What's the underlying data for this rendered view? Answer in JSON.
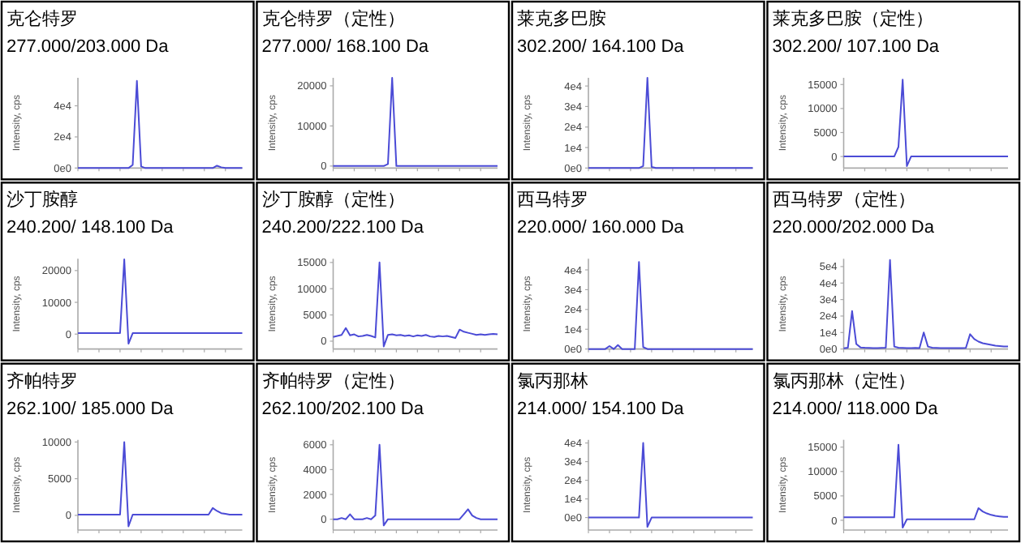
{
  "chart_data": [
    {
      "type": "line",
      "title": "克仑特罗",
      "subtitle": "277.000/203.000 Da",
      "ylabel": "Intensity, cps",
      "tick_labels": "y",
      "categories": [
        null,
        null,
        null,
        null,
        null,
        null,
        null,
        null,
        null,
        null,
        null,
        null,
        null,
        null,
        null,
        null,
        null,
        null,
        null,
        null,
        null,
        null,
        null,
        null,
        null,
        null,
        null,
        null,
        null,
        null,
        null,
        null,
        null,
        null,
        null,
        null,
        null,
        null,
        null,
        null
      ],
      "ylim": [
        0,
        58000
      ],
      "yticks": [
        {
          "value": 0,
          "label": "0e0"
        },
        {
          "value": 20000,
          "label": "2e4"
        },
        {
          "value": 40000,
          "label": "4e4"
        }
      ],
      "series": [
        {
          "color": "#4b4bd6",
          "values": [
            0,
            0,
            0,
            0,
            0,
            0,
            0,
            0,
            0,
            0,
            0,
            0,
            0,
            2000,
            56000,
            1000,
            0,
            0,
            0,
            0,
            0,
            0,
            0,
            0,
            0,
            0,
            0,
            0,
            0,
            0,
            0,
            0,
            0,
            1500,
            500,
            0,
            0,
            0,
            0,
            0
          ]
        }
      ]
    },
    {
      "type": "line",
      "title": "克仑特罗（定性）",
      "subtitle": "277.000/ 168.100 Da",
      "ylabel": "Intensity, cps",
      "tick_labels": "y",
      "categories": [
        null,
        null,
        null,
        null,
        null,
        null,
        null,
        null,
        null,
        null,
        null,
        null,
        null,
        null,
        null,
        null,
        null,
        null,
        null,
        null,
        null,
        null,
        null,
        null,
        null,
        null,
        null,
        null,
        null,
        null,
        null,
        null,
        null,
        null,
        null,
        null,
        null,
        null,
        null,
        null
      ],
      "ylim": [
        -500,
        22000
      ],
      "yticks": [
        0,
        10000,
        20000
      ],
      "series": [
        {
          "color": "#4b4bd6",
          "values": [
            0,
            0,
            0,
            0,
            0,
            0,
            0,
            0,
            0,
            0,
            0,
            0,
            0,
            500,
            22000,
            0,
            0,
            0,
            0,
            0,
            0,
            0,
            0,
            0,
            0,
            0,
            0,
            0,
            0,
            0,
            0,
            0,
            0,
            0,
            0,
            0,
            0,
            0,
            0,
            0
          ]
        }
      ]
    },
    {
      "type": "line",
      "title": "莱克多巴胺",
      "subtitle": "302.200/ 164.100 Da",
      "ylabel": "Intensity, cps",
      "tick_labels": "y",
      "categories": [
        null,
        null,
        null,
        null,
        null,
        null,
        null,
        null,
        null,
        null,
        null,
        null,
        null,
        null,
        null,
        null,
        null,
        null,
        null,
        null,
        null,
        null,
        null,
        null,
        null,
        null,
        null,
        null,
        null,
        null,
        null,
        null,
        null,
        null,
        null,
        null,
        null,
        null,
        null,
        null
      ],
      "ylim": [
        0,
        44000
      ],
      "yticks": [
        {
          "value": 0,
          "label": "0e0"
        },
        {
          "value": 10000,
          "label": "1e4"
        },
        {
          "value": 20000,
          "label": "2e4"
        },
        {
          "value": 30000,
          "label": "3e4"
        },
        {
          "value": 40000,
          "label": "4e4"
        }
      ],
      "series": [
        {
          "color": "#4b4bd6",
          "values": [
            0,
            0,
            0,
            0,
            0,
            0,
            0,
            0,
            0,
            0,
            0,
            0,
            0,
            1000,
            44000,
            500,
            0,
            0,
            0,
            0,
            0,
            0,
            0,
            0,
            0,
            0,
            0,
            0,
            0,
            0,
            0,
            0,
            0,
            0,
            0,
            0,
            0,
            0,
            0,
            0
          ]
        }
      ]
    },
    {
      "type": "line",
      "title": "莱克多巴胺（定性）",
      "subtitle": "302.200/ 107.100 Da",
      "ylabel": "Intensity, cps",
      "tick_labels": "y",
      "categories": [
        null,
        null,
        null,
        null,
        null,
        null,
        null,
        null,
        null,
        null,
        null,
        null,
        null,
        null,
        null,
        null,
        null,
        null,
        null,
        null,
        null,
        null,
        null,
        null,
        null,
        null,
        null,
        null,
        null,
        null,
        null,
        null,
        null,
        null,
        null,
        null,
        null,
        null,
        null,
        null
      ],
      "ylim": [
        -2400,
        16400
      ],
      "yticks": [
        0,
        5000,
        10000,
        15000
      ],
      "series": [
        {
          "color": "#4b4bd6",
          "values": [
            0,
            0,
            0,
            0,
            0,
            0,
            0,
            0,
            0,
            0,
            0,
            0,
            0,
            2000,
            16000,
            -2000,
            0,
            0,
            0,
            0,
            0,
            0,
            0,
            0,
            0,
            0,
            0,
            0,
            0,
            0,
            0,
            0,
            0,
            0,
            0,
            0,
            0,
            0,
            0,
            0
          ]
        }
      ]
    },
    {
      "type": "line",
      "title": "沙丁胺醇",
      "subtitle": "240.200/ 148.100 Da",
      "ylabel": "Intensity, cps",
      "tick_labels": "y",
      "categories": [
        null,
        null,
        null,
        null,
        null,
        null,
        null,
        null,
        null,
        null,
        null,
        null,
        null,
        null,
        null,
        null,
        null,
        null,
        null,
        null,
        null,
        null,
        null,
        null,
        null,
        null,
        null,
        null,
        null,
        null,
        null,
        null,
        null,
        null,
        null,
        null,
        null,
        null,
        null,
        null
      ],
      "ylim": [
        -4700,
        23700
      ],
      "yticks": [
        0,
        10000,
        20000
      ],
      "series": [
        {
          "color": "#4b4bd6",
          "values": [
            300,
            300,
            300,
            300,
            300,
            300,
            300,
            300,
            300,
            300,
            300,
            23500,
            -3000,
            300,
            300,
            300,
            300,
            300,
            300,
            300,
            300,
            300,
            300,
            300,
            300,
            300,
            300,
            300,
            300,
            300,
            300,
            300,
            300,
            300,
            300,
            300,
            300,
            300,
            300,
            300
          ]
        }
      ]
    },
    {
      "type": "line",
      "title": "沙丁胺醇（定性）",
      "subtitle": "240.200/222.100 Da",
      "ylabel": "Intensity, cps",
      "tick_labels": "y",
      "categories": [
        null,
        null,
        null,
        null,
        null,
        null,
        null,
        null,
        null,
        null,
        null,
        null,
        null,
        null,
        null,
        null,
        null,
        null,
        null,
        null,
        null,
        null,
        null,
        null,
        null,
        null,
        null,
        null,
        null,
        null,
        null,
        null,
        null,
        null,
        null,
        null,
        null,
        null,
        null,
        null
      ],
      "ylim": [
        -1500,
        15700
      ],
      "yticks": [
        0,
        5000,
        10000,
        15000
      ],
      "series": [
        {
          "color": "#4b4bd6",
          "values": [
            800,
            1000,
            1200,
            2500,
            1100,
            1300,
            900,
            1000,
            1200,
            1000,
            700,
            15000,
            -1000,
            1200,
            1300,
            1100,
            1200,
            1000,
            1100,
            900,
            1100,
            1000,
            1200,
            900,
            800,
            1000,
            900,
            1000,
            800,
            600,
            2200,
            1800,
            1600,
            1400,
            1200,
            1300,
            1200,
            1300,
            1400,
            1300
          ]
        }
      ]
    },
    {
      "type": "line",
      "title": "西马特罗",
      "subtitle": "220.000/ 160.000 Da",
      "ylabel": "Intensity, cps",
      "tick_labels": "y",
      "categories": [
        null,
        null,
        null,
        null,
        null,
        null,
        null,
        null,
        null,
        null,
        null,
        null,
        null,
        null,
        null,
        null,
        null,
        null,
        null,
        null,
        null,
        null,
        null,
        null,
        null,
        null,
        null,
        null,
        null,
        null,
        null,
        null,
        null,
        null,
        null,
        null,
        null,
        null,
        null,
        null
      ],
      "ylim": [
        0,
        45600
      ],
      "yticks": [
        {
          "value": 0,
          "label": "0e0"
        },
        {
          "value": 10000,
          "label": "1e4"
        },
        {
          "value": 20000,
          "label": "2e4"
        },
        {
          "value": 30000,
          "label": "3e4"
        },
        {
          "value": 40000,
          "label": "4e4"
        }
      ],
      "series": [
        {
          "color": "#4b4bd6",
          "values": [
            0,
            0,
            0,
            0,
            0,
            1500,
            0,
            2000,
            0,
            0,
            0,
            0,
            44000,
            1000,
            0,
            0,
            0,
            0,
            0,
            0,
            0,
            0,
            0,
            0,
            0,
            0,
            0,
            0,
            0,
            0,
            0,
            0,
            0,
            0,
            0,
            0,
            0,
            0,
            0,
            0
          ]
        }
      ]
    },
    {
      "type": "line",
      "title": "西马特罗（定性）",
      "subtitle": "220.000/202.000 Da",
      "ylabel": "Intensity, cps",
      "tick_labels": "y",
      "categories": [
        null,
        null,
        null,
        null,
        null,
        null,
        null,
        null,
        null,
        null,
        null,
        null,
        null,
        null,
        null,
        null,
        null,
        null,
        null,
        null,
        null,
        null,
        null,
        null,
        null,
        null,
        null,
        null,
        null,
        null,
        null,
        null,
        null,
        null,
        null,
        null,
        null,
        null,
        null,
        null
      ],
      "ylim": [
        0,
        54700
      ],
      "yticks": [
        {
          "value": 0,
          "label": "0e0"
        },
        {
          "value": 10000,
          "label": "1e4"
        },
        {
          "value": 20000,
          "label": "2e4"
        },
        {
          "value": 30000,
          "label": "3e4"
        },
        {
          "value": 40000,
          "label": "4e4"
        },
        {
          "value": 50000,
          "label": "5e4"
        }
      ],
      "series": [
        {
          "color": "#4b4bd6",
          "values": [
            500,
            800,
            23000,
            3000,
            1000,
            800,
            700,
            600,
            600,
            700,
            800,
            54000,
            1500,
            800,
            700,
            600,
            600,
            700,
            600,
            10000,
            1500,
            800,
            700,
            600,
            600,
            600,
            600,
            600,
            600,
            700,
            9000,
            6000,
            4500,
            3500,
            3000,
            2500,
            2000,
            1800,
            1600,
            1500
          ]
        }
      ]
    },
    {
      "type": "line",
      "title": "齐帕特罗",
      "subtitle": "262.100/ 185.000 Da",
      "ylabel": "Intensity, cps",
      "tick_labels": "y",
      "categories": [
        null,
        null,
        null,
        null,
        null,
        null,
        null,
        null,
        null,
        null,
        null,
        null,
        null,
        null,
        null,
        null,
        null,
        null,
        null,
        null,
        null,
        null,
        null,
        null,
        null,
        null,
        null,
        null,
        null,
        null,
        null,
        null,
        null,
        null,
        null,
        null,
        null,
        null,
        null,
        null
      ],
      "ylim": [
        -2000,
        10300
      ],
      "yticks": [
        0,
        5000,
        10000
      ],
      "series": [
        {
          "color": "#4b4bd6",
          "values": [
            100,
            100,
            100,
            100,
            100,
            100,
            100,
            100,
            100,
            100,
            100,
            10000,
            -1500,
            100,
            100,
            100,
            100,
            100,
            100,
            100,
            100,
            100,
            100,
            100,
            100,
            100,
            100,
            100,
            100,
            100,
            100,
            100,
            1000,
            600,
            300,
            200,
            100,
            100,
            100,
            100
          ]
        }
      ]
    },
    {
      "type": "line",
      "title": "齐帕特罗（定性）",
      "subtitle": "262.100/202.100 Da",
      "ylabel": "Intensity, cps",
      "tick_labels": "y",
      "categories": [
        null,
        null,
        null,
        null,
        null,
        null,
        null,
        null,
        null,
        null,
        null,
        null,
        null,
        null,
        null,
        null,
        null,
        null,
        null,
        null,
        null,
        null,
        null,
        null,
        null,
        null,
        null,
        null,
        null,
        null,
        null,
        null,
        null,
        null,
        null,
        null,
        null,
        null,
        null,
        null
      ],
      "ylim": [
        -870,
        6400
      ],
      "yticks": [
        0,
        2000,
        4000,
        6000
      ],
      "series": [
        {
          "color": "#4b4bd6",
          "values": [
            0,
            0,
            100,
            0,
            400,
            0,
            0,
            0,
            100,
            0,
            300,
            6000,
            -500,
            0,
            0,
            0,
            0,
            0,
            0,
            0,
            0,
            0,
            0,
            0,
            0,
            0,
            0,
            0,
            0,
            0,
            0,
            400,
            800,
            300,
            100,
            0,
            0,
            0,
            0,
            0
          ]
        }
      ]
    },
    {
      "type": "line",
      "title": "氯丙那林",
      "subtitle": "214.000/ 154.100 Da",
      "ylabel": "Intensity, cps",
      "tick_labels": "y",
      "categories": [
        null,
        null,
        null,
        null,
        null,
        null,
        null,
        null,
        null,
        null,
        null,
        null,
        null,
        null,
        null,
        null,
        null,
        null,
        null,
        null,
        null,
        null,
        null,
        null,
        null,
        null,
        null,
        null,
        null,
        null,
        null,
        null,
        null,
        null,
        null,
        null,
        null,
        null,
        null,
        null
      ],
      "ylim": [
        -6700,
        41700
      ],
      "yticks": [
        {
          "value": 0,
          "label": "0e0"
        },
        {
          "value": 10000,
          "label": "1e4"
        },
        {
          "value": 20000,
          "label": "2e4"
        },
        {
          "value": 30000,
          "label": "3e4"
        },
        {
          "value": 40000,
          "label": "4e4"
        }
      ],
      "series": [
        {
          "color": "#4b4bd6",
          "values": [
            0,
            0,
            0,
            0,
            0,
            0,
            0,
            0,
            0,
            0,
            0,
            0,
            0,
            40000,
            -5000,
            0,
            0,
            0,
            0,
            0,
            0,
            0,
            0,
            0,
            0,
            0,
            0,
            0,
            0,
            0,
            0,
            0,
            0,
            0,
            0,
            0,
            0,
            0,
            0,
            0
          ]
        }
      ]
    },
    {
      "type": "line",
      "title": "氯丙那林（定性）",
      "subtitle": "214.000/ 118.000 Da",
      "ylabel": "Intensity, cps",
      "tick_labels": "y",
      "categories": [
        null,
        null,
        null,
        null,
        null,
        null,
        null,
        null,
        null,
        null,
        null,
        null,
        null,
        null,
        null,
        null,
        null,
        null,
        null,
        null,
        null,
        null,
        null,
        null,
        null,
        null,
        null,
        null,
        null,
        null,
        null,
        null,
        null,
        null,
        null,
        null,
        null,
        null,
        null,
        null
      ],
      "ylim": [
        -2000,
        16500
      ],
      "yticks": [
        0,
        5000,
        10000,
        15000
      ],
      "series": [
        {
          "color": "#4b4bd6",
          "values": [
            600,
            600,
            600,
            600,
            600,
            600,
            600,
            600,
            600,
            600,
            600,
            600,
            600,
            15500,
            -1500,
            200,
            200,
            200,
            200,
            200,
            200,
            200,
            200,
            200,
            200,
            200,
            200,
            200,
            200,
            200,
            200,
            200,
            2500,
            1800,
            1400,
            1100,
            900,
            800,
            700,
            700
          ]
        }
      ]
    }
  ]
}
